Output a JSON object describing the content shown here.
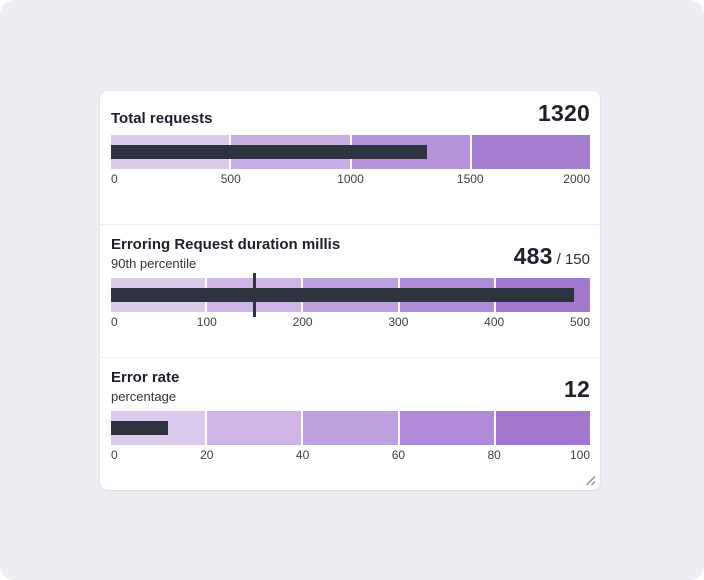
{
  "page": {
    "background_color": "#eceef4",
    "card_color": "#ffffff"
  },
  "colors": {
    "measure_bar": "#2e333e",
    "target_marker": "#2e333e",
    "title_text": "#1c212c",
    "axis_text": "#3c414c",
    "divider": "#edeef3",
    "resize_grip": "#8d9199"
  },
  "chart_data": [
    {
      "type": "bullet",
      "title": "Total requests",
      "subtitle": null,
      "value": 1320,
      "target": null,
      "target_display": null,
      "min": 0,
      "max": 2000,
      "ticks": [
        0,
        500,
        1000,
        1500,
        2000
      ],
      "bands": [
        {
          "from": 0,
          "to": 500,
          "color": "#ddcbee"
        },
        {
          "from": 500,
          "to": 1000,
          "color": "#c9aee5"
        },
        {
          "from": 1000,
          "to": 1500,
          "color": "#b795da"
        },
        {
          "from": 1500,
          "to": 2000,
          "color": "#a67ed0"
        }
      ]
    },
    {
      "type": "bullet",
      "title": "Erroring Request duration millis",
      "subtitle": "90th percentile",
      "value": 483,
      "target": 150,
      "target_display": "/ 150",
      "min": 0,
      "max": 500,
      "ticks": [
        0,
        100,
        200,
        300,
        400,
        500
      ],
      "bands": [
        {
          "from": 0,
          "to": 100,
          "color": "#ddcbee"
        },
        {
          "from": 100,
          "to": 200,
          "color": "#cfb5e8"
        },
        {
          "from": 200,
          "to": 300,
          "color": "#bfa0df"
        },
        {
          "from": 300,
          "to": 400,
          "color": "#b08bd7"
        },
        {
          "from": 400,
          "to": 500,
          "color": "#a277cd"
        }
      ]
    },
    {
      "type": "bullet",
      "title": "Error rate",
      "subtitle": "percentage",
      "value": 12,
      "target": null,
      "target_display": null,
      "min": 0,
      "max": 100,
      "ticks": [
        0,
        20,
        40,
        60,
        80,
        100
      ],
      "bands": [
        {
          "from": 0,
          "to": 20,
          "color": "#ddcbee"
        },
        {
          "from": 20,
          "to": 40,
          "color": "#cfb5e8"
        },
        {
          "from": 40,
          "to": 60,
          "color": "#bfa0df"
        },
        {
          "from": 60,
          "to": 80,
          "color": "#b08bd7"
        },
        {
          "from": 80,
          "to": 100,
          "color": "#a277cd"
        }
      ]
    }
  ]
}
